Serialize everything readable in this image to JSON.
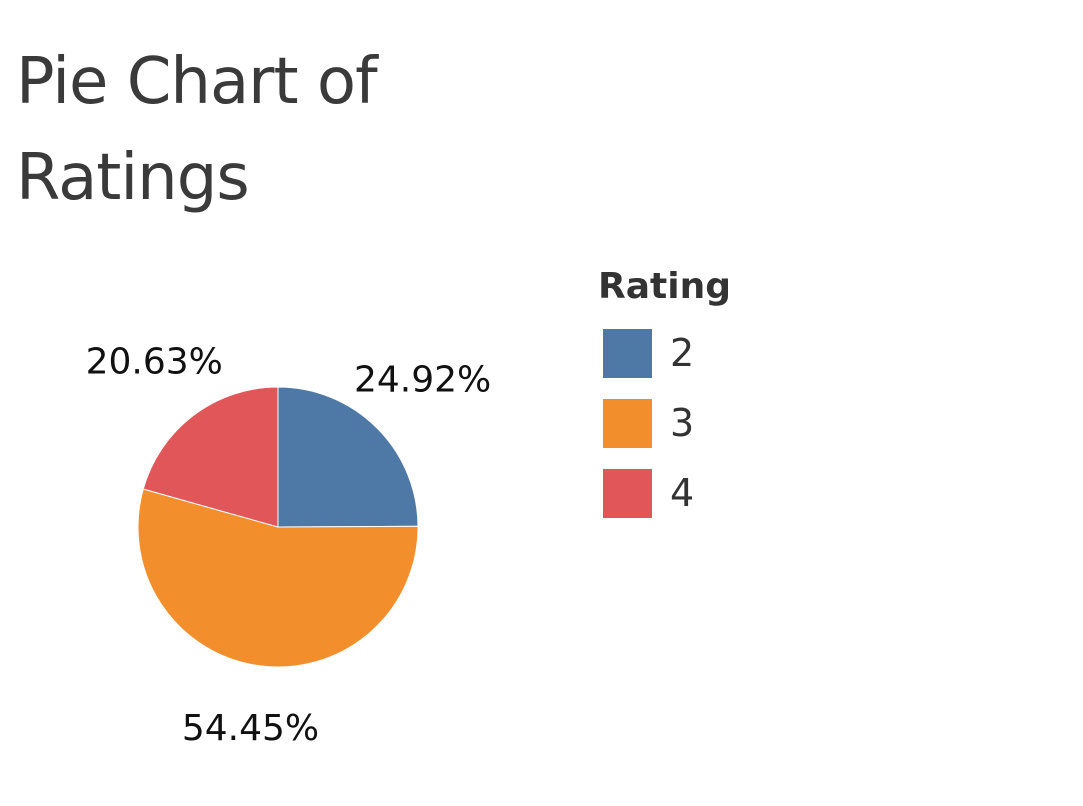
{
  "chart_data": {
    "type": "pie",
    "title": "Pie Chart of Ratings",
    "legend_title": "Rating",
    "legend_position": "right",
    "slices": [
      {
        "category": "2",
        "value": 24.92,
        "label": "24.92%",
        "color": "#4e79a7"
      },
      {
        "category": "3",
        "value": 54.45,
        "label": "54.45%",
        "color": "#f28e2b"
      },
      {
        "category": "4",
        "value": 20.63,
        "label": "20.63%",
        "color": "#e15759"
      }
    ]
  }
}
